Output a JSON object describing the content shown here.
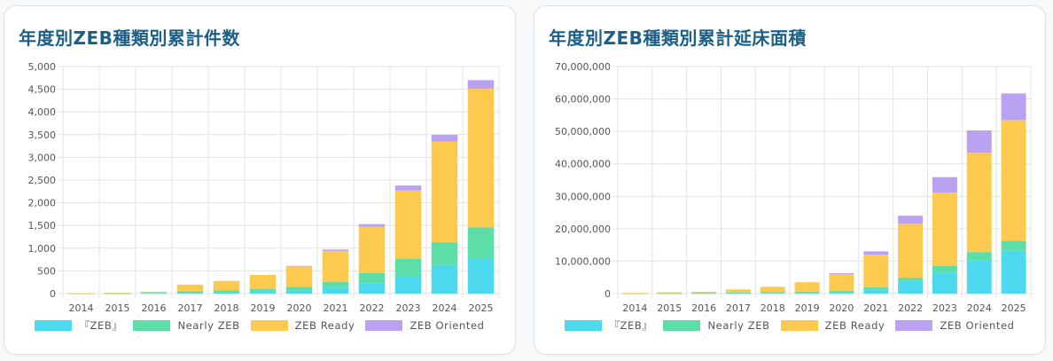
{
  "chart_data": [
    {
      "type": "bar",
      "stacked": true,
      "title": "年度別ZEB種類別累計件数",
      "categories": [
        "2014",
        "2015",
        "2016",
        "2017",
        "2018",
        "2019",
        "2020",
        "2021",
        "2022",
        "2023",
        "2024",
        "2025"
      ],
      "ylim": [
        0,
        5000
      ],
      "yticks": [
        0,
        500,
        1000,
        1500,
        2000,
        2500,
        3000,
        3500,
        4000,
        4500,
        5000
      ],
      "ytick_labels": [
        "0",
        "500",
        "1,000",
        "1,500",
        "2,000",
        "2,500",
        "3,000",
        "3,500",
        "4,000",
        "4,500",
        "5,000"
      ],
      "grid": true,
      "legend": "bottom",
      "series": [
        {
          "name": "『ZEB』",
          "color": "#4dd9ee",
          "values": [
            2,
            3,
            8,
            18,
            30,
            50,
            70,
            130,
            230,
            390,
            630,
            770
          ]
        },
        {
          "name": "Nearly ZEB",
          "color": "#5ddea8",
          "values": [
            3,
            5,
            10,
            30,
            40,
            55,
            80,
            130,
            220,
            380,
            500,
            690
          ]
        },
        {
          "name": "ZEB Ready",
          "color": "#fcca4f",
          "values": [
            5,
            10,
            25,
            150,
            210,
            305,
            450,
            680,
            1020,
            1500,
            2220,
            3050
          ]
        },
        {
          "name": "ZEB Oriented",
          "color": "#b9a2f2",
          "values": [
            0,
            0,
            0,
            0,
            0,
            0,
            10,
            30,
            60,
            110,
            150,
            190
          ]
        }
      ]
    },
    {
      "type": "bar",
      "stacked": true,
      "title": "年度別ZEB種類別累計延床面積",
      "categories": [
        "2014",
        "2015",
        "2016",
        "2017",
        "2018",
        "2019",
        "2020",
        "2021",
        "2022",
        "2023",
        "2024",
        "2025"
      ],
      "ylim": [
        0,
        70000000
      ],
      "yticks": [
        0,
        10000000,
        20000000,
        30000000,
        40000000,
        50000000,
        60000000,
        70000000
      ],
      "ytick_labels": [
        "0",
        "10,000,000",
        "20,000,000",
        "30,000,000",
        "40,000,000",
        "50,000,000",
        "60,000,000",
        "70,000,000"
      ],
      "grid": true,
      "legend": "bottom",
      "series": [
        {
          "name": "『ZEB』",
          "color": "#4dd9ee",
          "values": [
            20000,
            50000,
            80000,
            150000,
            200000,
            300000,
            400000,
            1300000,
            4000000,
            6500000,
            10300000,
            13200000
          ]
        },
        {
          "name": "Nearly ZEB",
          "color": "#5ddea8",
          "values": [
            20000,
            50000,
            70000,
            150000,
            200000,
            300000,
            400000,
            700000,
            800000,
            2000000,
            2500000,
            3100000
          ]
        },
        {
          "name": "ZEB Ready",
          "color": "#fcca4f",
          "values": [
            160000,
            300000,
            400000,
            1000000,
            1700000,
            2900000,
            5200000,
            10000000,
            16700000,
            22600000,
            30600000,
            37200000
          ]
        },
        {
          "name": "ZEB Oriented",
          "color": "#b9a2f2",
          "values": [
            0,
            0,
            0,
            0,
            0,
            0,
            300000,
            1000000,
            2500000,
            4800000,
            6900000,
            8200000
          ]
        }
      ]
    }
  ]
}
